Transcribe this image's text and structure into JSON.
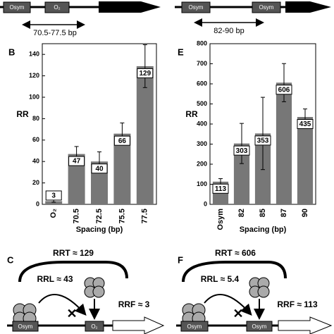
{
  "chart_data": [
    {
      "type": "bar",
      "panel": "B",
      "ylabel": "RR",
      "xlabel": "Spacing (bp)",
      "categories": [
        "O₂",
        "70.5",
        "72.5",
        "75.5",
        "77.5"
      ],
      "values": [
        3,
        47,
        40,
        66,
        129
      ],
      "errors": [
        1,
        7,
        9,
        10,
        20
      ],
      "color": "#777777",
      "ylim": [
        0,
        150
      ],
      "yticks": [
        0,
        20,
        40,
        60,
        80,
        100,
        120,
        140
      ]
    },
    {
      "type": "bar",
      "panel": "E",
      "ylabel": "RR",
      "xlabel": "Spacing (bp)",
      "categories": [
        "Osym",
        "82",
        "85",
        "87",
        "90"
      ],
      "values": [
        113,
        303,
        353,
        606,
        435
      ],
      "errors": [
        15,
        100,
        180,
        95,
        40
      ],
      "color": "#777777",
      "ylim": [
        0,
        800
      ],
      "yticks": [
        0,
        100,
        200,
        300,
        400,
        500,
        600,
        700,
        800
      ]
    }
  ],
  "top_left": {
    "op1": "Osym",
    "op2": "O₂",
    "span": "70.5-77.5 bp"
  },
  "top_right": {
    "op1": "Osym",
    "op2": "Osym",
    "span": "82-90 bp"
  },
  "panel_c": {
    "panel": "C",
    "rrt": "RRT ≈ 129",
    "rrl": "RRL ≈ 43",
    "rrf": "RRF ≈ 3",
    "op1": "Osym",
    "op2": "O₂"
  },
  "panel_f": {
    "panel": "F",
    "rrt": "RRT ≈ 606",
    "rrl": "RRL ≈ 5.4",
    "rrf": "RRF ≈ 113",
    "op1": "Osym",
    "op2": "Osym"
  }
}
